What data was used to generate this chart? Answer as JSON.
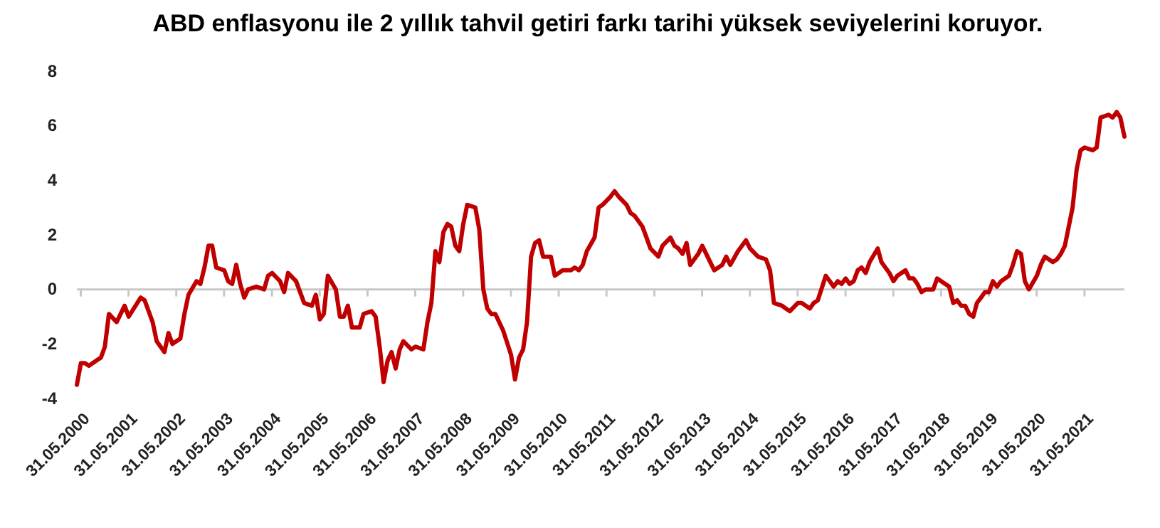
{
  "chart_data": {
    "type": "line",
    "title": "ABD enflasyonu ile 2 yıllık tahvil getiri farkı tarihi yüksek seviyelerini koruyor.",
    "x": [
      "2000-05",
      "2000-06",
      "2000-07",
      "2000-08",
      "2000-10",
      "2000-11",
      "2000-12",
      "2001-01",
      "2001-03",
      "2001-05",
      "2001-06",
      "2001-09",
      "2001-10",
      "2001-12",
      "2002-01",
      "2002-03",
      "2002-04",
      "2002-05",
      "2002-07",
      "2002-08",
      "2002-09",
      "2002-11",
      "2002-12",
      "2003-01",
      "2003-02",
      "2003-03",
      "2003-04",
      "2003-06",
      "2003-07",
      "2003-08",
      "2003-09",
      "2003-10",
      "2003-11",
      "2003-12",
      "2004-02",
      "2004-04",
      "2004-05",
      "2004-06",
      "2004-08",
      "2004-09",
      "2004-10",
      "2004-12",
      "2005-02",
      "2005-04",
      "2005-05",
      "2005-06",
      "2005-07",
      "2005-08",
      "2005-10",
      "2005-11",
      "2005-12",
      "2006-01",
      "2006-02",
      "2006-04",
      "2006-05",
      "2006-07",
      "2006-08",
      "2006-09",
      "2006-10",
      "2006-11",
      "2006-12",
      "2007-01",
      "2007-02",
      "2007-03",
      "2007-05",
      "2007-06",
      "2007-08",
      "2007-09",
      "2007-10",
      "2007-11",
      "2007-12",
      "2008-01",
      "2008-02",
      "2008-03",
      "2008-04",
      "2008-05",
      "2008-06",
      "2008-07",
      "2008-09",
      "2008-10",
      "2008-11",
      "2008-12",
      "2009-01",
      "2009-02",
      "2009-04",
      "2009-06",
      "2009-07",
      "2009-08",
      "2009-09",
      "2009-10",
      "2009-11",
      "2009-12",
      "2010-01",
      "2010-02",
      "2010-03",
      "2010-04",
      "2010-05",
      "2010-07",
      "2010-09",
      "2010-10",
      "2010-11",
      "2010-12",
      "2011-01",
      "2011-03",
      "2011-04",
      "2011-05",
      "2011-07",
      "2011-08",
      "2011-09",
      "2011-11",
      "2011-12",
      "2012-01",
      "2012-03",
      "2012-04",
      "2012-05",
      "2012-07",
      "2012-08",
      "2012-10",
      "2012-11",
      "2012-12",
      "2013-01",
      "2013-02",
      "2013-03",
      "2013-05",
      "2013-06",
      "2013-08",
      "2013-09",
      "2013-11",
      "2013-12",
      "2014-01",
      "2014-03",
      "2014-05",
      "2014-06",
      "2014-08",
      "2014-10",
      "2014-11",
      "2014-12",
      "2015-02",
      "2015-03",
      "2015-04",
      "2015-06",
      "2015-07",
      "2015-09",
      "2015-10",
      "2015-11",
      "2016-01",
      "2016-02",
      "2016-03",
      "2016-04",
      "2016-05",
      "2016-06",
      "2016-07",
      "2016-08",
      "2016-09",
      "2016-10",
      "2016-11",
      "2016-12",
      "2017-02",
      "2017-03",
      "2017-05",
      "2017-06",
      "2017-07",
      "2017-09",
      "2017-10",
      "2017-11",
      "2017-12",
      "2018-01",
      "2018-02",
      "2018-04",
      "2018-05",
      "2018-06",
      "2018-08",
      "2018-09",
      "2018-10",
      "2018-11",
      "2018-12",
      "2019-01",
      "2019-02",
      "2019-03",
      "2019-04",
      "2019-05",
      "2019-06",
      "2019-07",
      "2019-08",
      "2019-09",
      "2019-11",
      "2019-12",
      "2020-01",
      "2020-02",
      "2020-03",
      "2020-04",
      "2020-06",
      "2020-07",
      "2020-08",
      "2020-10",
      "2020-11",
      "2020-12",
      "2021-01",
      "2021-03",
      "2021-04",
      "2021-05",
      "2021-06",
      "2021-08",
      "2021-09",
      "2021-10",
      "2021-12",
      "2022-01",
      "2022-02",
      "2022-03",
      "2022-04"
    ],
    "series": [
      {
        "color": "#c00000",
        "values": [
          -3.5,
          -2.7,
          -2.7,
          -2.8,
          -2.6,
          -2.5,
          -2.1,
          -0.9,
          -1.2,
          -0.6,
          -1.0,
          -0.3,
          -0.4,
          -1.2,
          -1.9,
          -2.3,
          -1.6,
          -2.0,
          -1.8,
          -0.9,
          -0.2,
          0.3,
          0.2,
          0.8,
          1.6,
          1.6,
          0.8,
          0.7,
          0.3,
          0.2,
          0.9,
          0.2,
          -0.3,
          0,
          0.1,
          0,
          0.5,
          0.6,
          0.3,
          -0.1,
          0.6,
          0.3,
          -0.5,
          -0.6,
          -0.2,
          -1.1,
          -0.9,
          0.5,
          0,
          -1.0,
          -1.0,
          -0.6,
          -1.4,
          -1.4,
          -0.9,
          -0.8,
          -1.0,
          -2.1,
          -3.4,
          -2.6,
          -2.3,
          -2.9,
          -2.2,
          -1.9,
          -2.2,
          -2.1,
          -2.2,
          -1.2,
          -0.5,
          1.4,
          1.0,
          2.1,
          2.4,
          2.3,
          1.6,
          1.4,
          2.4,
          3.1,
          3.0,
          2.2,
          0,
          -0.7,
          -0.9,
          -0.9,
          -1.5,
          -2.4,
          -3.3,
          -2.5,
          -2.2,
          -1.2,
          1.2,
          1.7,
          1.8,
          1.2,
          1.2,
          1.2,
          0.5,
          0.7,
          0.7,
          0.8,
          0.7,
          0.9,
          1.4,
          1.9,
          3.0,
          3.1,
          3.4,
          3.6,
          3.4,
          3.1,
          2.8,
          2.7,
          2.3,
          1.9,
          1.5,
          1.2,
          1.6,
          1.9,
          1.6,
          1.5,
          1.3,
          1.7,
          0.9,
          1.3,
          1.6,
          1.0,
          0.7,
          0.9,
          1.2,
          0.9,
          1.4,
          1.8,
          1.5,
          1.2,
          1.1,
          0.7,
          -0.5,
          -0.6,
          -0.7,
          -0.8,
          -0.5,
          -0.5,
          -0.7,
          -0.5,
          -0.4,
          0.5,
          0.3,
          0.1,
          0.3,
          0.2,
          0.4,
          0.2,
          0.3,
          0.7,
          0.8,
          0.6,
          1.0,
          1.5,
          1.0,
          0.6,
          0.3,
          0.5,
          0.7,
          0.4,
          0.4,
          0.2,
          -0.1,
          0,
          0,
          0.4,
          0.3,
          0.1,
          -0.5,
          -0.4,
          -0.6,
          -0.6,
          -0.9,
          -1.0,
          -0.5,
          -0.3,
          -0.1,
          -0.1,
          0.3,
          0.1,
          0.3,
          0.5,
          0.9,
          1.4,
          1.3,
          0.3,
          0,
          0.5,
          0.9,
          1.2,
          1.0,
          1.1,
          1.3,
          1.6,
          3.0,
          4.4,
          5.1,
          5.2,
          5.1,
          5.2,
          6.3,
          6.4,
          6.3,
          6.5,
          6.3,
          5.6
        ]
      }
    ],
    "ylim": [
      -4,
      8
    ],
    "yticks": [
      -4,
      -2,
      0,
      2,
      4,
      6,
      8
    ],
    "xlim": [
      "2000-05",
      "2022-04"
    ],
    "xticks": [
      {
        "value": "2000-05-31",
        "label": "31.05.2000"
      },
      {
        "value": "2001-05-31",
        "label": "31.05.2001"
      },
      {
        "value": "2002-05-31",
        "label": "31.05.2002"
      },
      {
        "value": "2003-05-31",
        "label": "31.05.2003"
      },
      {
        "value": "2004-05-31",
        "label": "31.05.2004"
      },
      {
        "value": "2005-05-31",
        "label": "31.05.2005"
      },
      {
        "value": "2006-05-31",
        "label": "31.05.2006"
      },
      {
        "value": "2007-05-31",
        "label": "31.05.2007"
      },
      {
        "value": "2008-05-31",
        "label": "31.05.2008"
      },
      {
        "value": "2009-05-31",
        "label": "31.05.2009"
      },
      {
        "value": "2010-05-31",
        "label": "31.05.2010"
      },
      {
        "value": "2011-05-31",
        "label": "31.05.2011"
      },
      {
        "value": "2012-05-31",
        "label": "31.05.2012"
      },
      {
        "value": "2013-05-31",
        "label": "31.05.2013"
      },
      {
        "value": "2014-05-31",
        "label": "31.05.2014"
      },
      {
        "value": "2015-05-31",
        "label": "31.05.2015"
      },
      {
        "value": "2016-05-31",
        "label": "31.05.2016"
      },
      {
        "value": "2017-05-31",
        "label": "31.05.2017"
      },
      {
        "value": "2018-05-31",
        "label": "31.05.2018"
      },
      {
        "value": "2019-05-31",
        "label": "31.05.2019"
      },
      {
        "value": "2020-05-31",
        "label": "31.05.2020"
      },
      {
        "value": "2021-05-31",
        "label": "31.05.2021"
      }
    ],
    "marker": "none",
    "line_style": "solid"
  }
}
